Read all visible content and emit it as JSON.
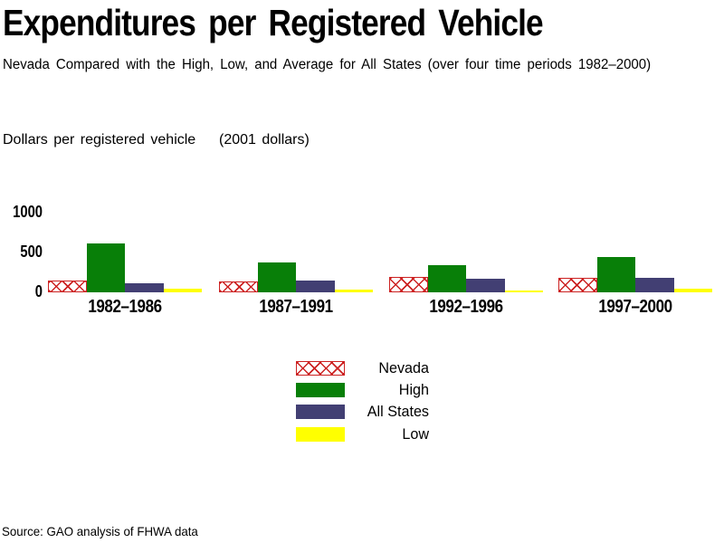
{
  "header": {
    "title": "Expenditures per Registered Vehicle",
    "subtitle": "Nevada Compared with the High, Low, and Average for All States (over four time periods 1982–2000)"
  },
  "axis_title": "Dollars per registered vehicle    (2001 dollars)",
  "source": "Source: GAO analysis of FHWA data",
  "colors": {
    "nevada_hatch_red": "#cc2222",
    "high_green": "#087f08",
    "all_states_blue": "#423f73",
    "low_yellow": "#ffff00"
  },
  "chart_data": {
    "type": "bar",
    "title": "Expenditures per Registered Vehicle",
    "subtitle": "Nevada Compared with the High, Low, and Average for All States (over four time periods 1982–2000)",
    "ylabel": "Dollars per registered vehicle (2001 dollars)",
    "xlabel": "",
    "categories": [
      "1982–1986",
      "1987–1991",
      "1992–1996",
      "1997–2000"
    ],
    "series": [
      {
        "name": "Nevada",
        "style": "crosshatch",
        "color": "#cc2222",
        "values": [
          150,
          140,
          195,
          185
        ]
      },
      {
        "name": "High",
        "style": "solid",
        "color": "#087f08",
        "values": [
          610,
          380,
          340,
          445
        ]
      },
      {
        "name": "All States",
        "style": "solid",
        "color": "#423f73",
        "values": [
          115,
          145,
          170,
          180
        ]
      },
      {
        "name": "Low",
        "style": "solid",
        "color": "#ffff00",
        "values": [
          40,
          35,
          25,
          40
        ]
      }
    ],
    "yticks": [
      0,
      500,
      1000
    ],
    "ylim": [
      0,
      1000
    ],
    "grid": false,
    "axis_lines": false,
    "legend_position": "bottom-center"
  }
}
